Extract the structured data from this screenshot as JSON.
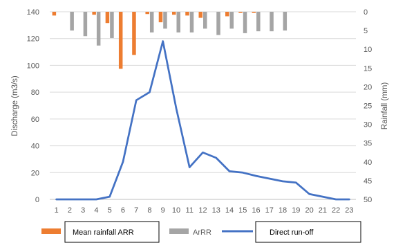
{
  "chart_data": {
    "type": "bar",
    "x": [
      1,
      2,
      3,
      4,
      5,
      6,
      7,
      8,
      9,
      10,
      11,
      12,
      13,
      14,
      15,
      16,
      17,
      18,
      19,
      20,
      21,
      22,
      23
    ],
    "x_tick_labels": [
      "1",
      "2",
      "3",
      "4",
      "5",
      "6",
      "7",
      "8",
      "9",
      "10",
      "11",
      "12",
      "13",
      "14",
      "15",
      "16",
      "17",
      "18",
      "19",
      "20",
      "21",
      "22",
      "23"
    ],
    "left_axis": {
      "label": "Discharge (m3/s)",
      "ylim": [
        0,
        140
      ],
      "ticks": [
        "0",
        "20",
        "40",
        "60",
        "80",
        "100",
        "120",
        "140"
      ]
    },
    "right_axis": {
      "label": "Rainfall (mm)",
      "ylim": [
        0,
        50
      ],
      "inverted": true,
      "ticks": [
        "0",
        "5",
        "10",
        "15",
        "20",
        "25",
        "30",
        "35",
        "40",
        "45",
        "50"
      ]
    },
    "grid": true,
    "legend_position": "bottom",
    "series": [
      {
        "name": "Mean rainfall ARR",
        "type": "bar",
        "axis": "right",
        "color": "#ED7D31",
        "values": [
          1.0,
          0,
          0,
          0.8,
          3.0,
          15.2,
          11.5,
          0.6,
          2.8,
          0.8,
          1.0,
          1.6,
          0,
          1.2,
          0.3,
          0.3,
          0,
          0,
          0,
          0,
          0,
          0,
          0
        ]
      },
      {
        "name": "ArRR",
        "type": "bar",
        "axis": "right",
        "color": "#A5A5A5",
        "values": [
          0,
          5.0,
          6.5,
          9.0,
          7.0,
          0,
          0,
          5.5,
          4.5,
          5.5,
          5.5,
          4.5,
          6.2,
          4.5,
          5.7,
          5.2,
          5.2,
          5.0,
          0,
          0,
          0,
          0,
          0
        ]
      },
      {
        "name": "Direct run-off",
        "type": "line",
        "axis": "left",
        "color": "#4472C4",
        "values": [
          0,
          0,
          0,
          0,
          2,
          28,
          74,
          80,
          118,
          68,
          24,
          35,
          31,
          21,
          20,
          17.5,
          15.5,
          13.5,
          12.5,
          4,
          2,
          0,
          0
        ]
      }
    ]
  }
}
